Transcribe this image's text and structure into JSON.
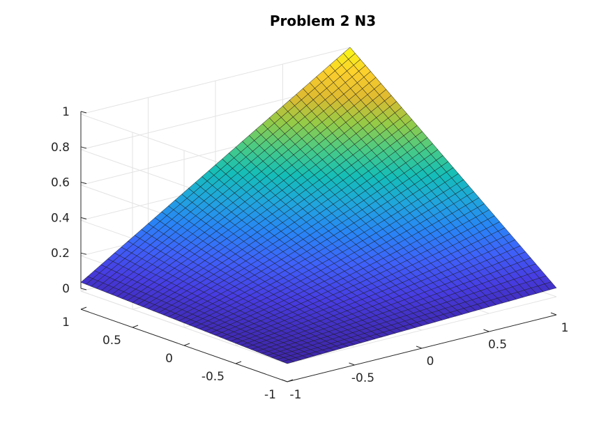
{
  "chart_data": {
    "type": "surface",
    "title": "Problem 2 N3",
    "xlabel": "",
    "ylabel": "",
    "zlabel": "",
    "xlim": [
      -1,
      1
    ],
    "ylim": [
      -1,
      1
    ],
    "zlim": [
      0,
      1
    ],
    "x_ticks": [
      "-1",
      "-0.5",
      "0",
      "0.5",
      "1"
    ],
    "y_ticks": [
      "-1",
      "-0.5",
      "0",
      "0.5",
      "1"
    ],
    "z_ticks": [
      "0",
      "0.2",
      "0.4",
      "0.6",
      "0.8",
      "1"
    ],
    "surface": {
      "grid": "41x41 mesh over [-1,1] x [-1,1]",
      "corner_values": {
        "x=-1,y=-1": 0,
        "x=1,y=-1": 0.05,
        "x=-1,y=1": 0.05,
        "x=1,y=1": 1
      },
      "minimum_value": -0.02,
      "colormap": "parula"
    },
    "grid": true,
    "view": "3d"
  }
}
